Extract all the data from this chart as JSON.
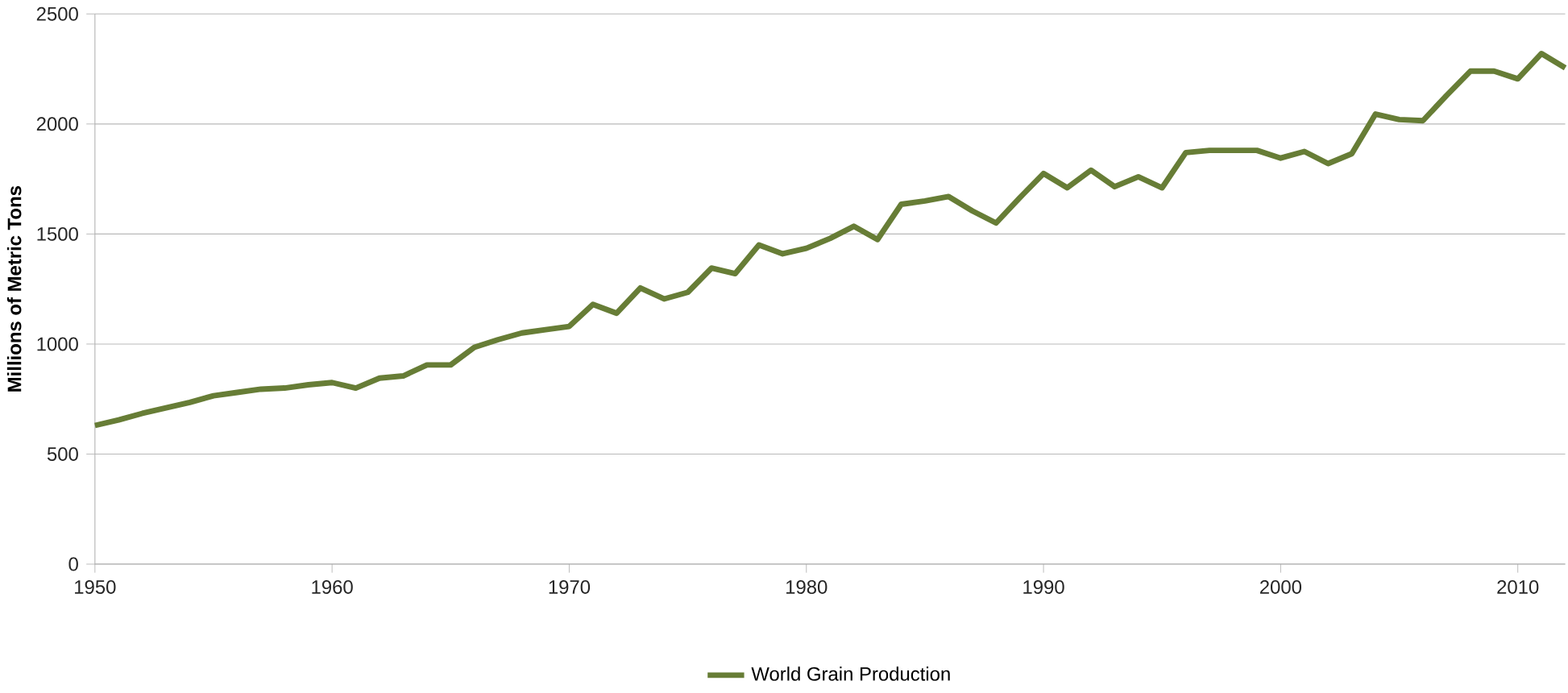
{
  "chart_data": {
    "type": "line",
    "ylabel": "Millions of Metric Tons",
    "xlim": [
      1950,
      2012
    ],
    "xticks": [
      1950,
      1960,
      1970,
      1980,
      1990,
      2000,
      2010
    ],
    "ylim": [
      0,
      2500
    ],
    "yticks": [
      0,
      500,
      1000,
      1500,
      2000,
      2500
    ],
    "grid": "y",
    "legend": "bottom",
    "marker": "none",
    "line_style": "solid",
    "x": [
      1950,
      1951,
      1952,
      1953,
      1954,
      1955,
      1956,
      1957,
      1958,
      1959,
      1960,
      1961,
      1962,
      1963,
      1964,
      1965,
      1966,
      1967,
      1968,
      1969,
      1970,
      1971,
      1972,
      1973,
      1974,
      1975,
      1976,
      1977,
      1978,
      1979,
      1980,
      1981,
      1982,
      1983,
      1984,
      1985,
      1986,
      1987,
      1988,
      1989,
      1990,
      1991,
      1992,
      1993,
      1994,
      1995,
      1996,
      1997,
      1998,
      1999,
      2000,
      2001,
      2002,
      2003,
      2004,
      2005,
      2006,
      2007,
      2008,
      2009,
      2010,
      2011,
      2012
    ],
    "series": [
      {
        "name": "World Grain Production",
        "color": "#677d36",
        "values": [
          630,
          655,
          685,
          710,
          735,
          765,
          780,
          795,
          800,
          815,
          825,
          800,
          845,
          855,
          905,
          905,
          985,
          1020,
          1050,
          1065,
          1080,
          1180,
          1140,
          1255,
          1205,
          1235,
          1345,
          1320,
          1450,
          1410,
          1435,
          1480,
          1535,
          1475,
          1635,
          1650,
          1670,
          1605,
          1550,
          1665,
          1775,
          1710,
          1790,
          1715,
          1760,
          1710,
          1870,
          1880,
          1880,
          1880,
          1845,
          1875,
          1820,
          1865,
          2045,
          2020,
          2015,
          2130,
          2240,
          2240,
          2205,
          2320,
          2255
        ]
      }
    ]
  }
}
